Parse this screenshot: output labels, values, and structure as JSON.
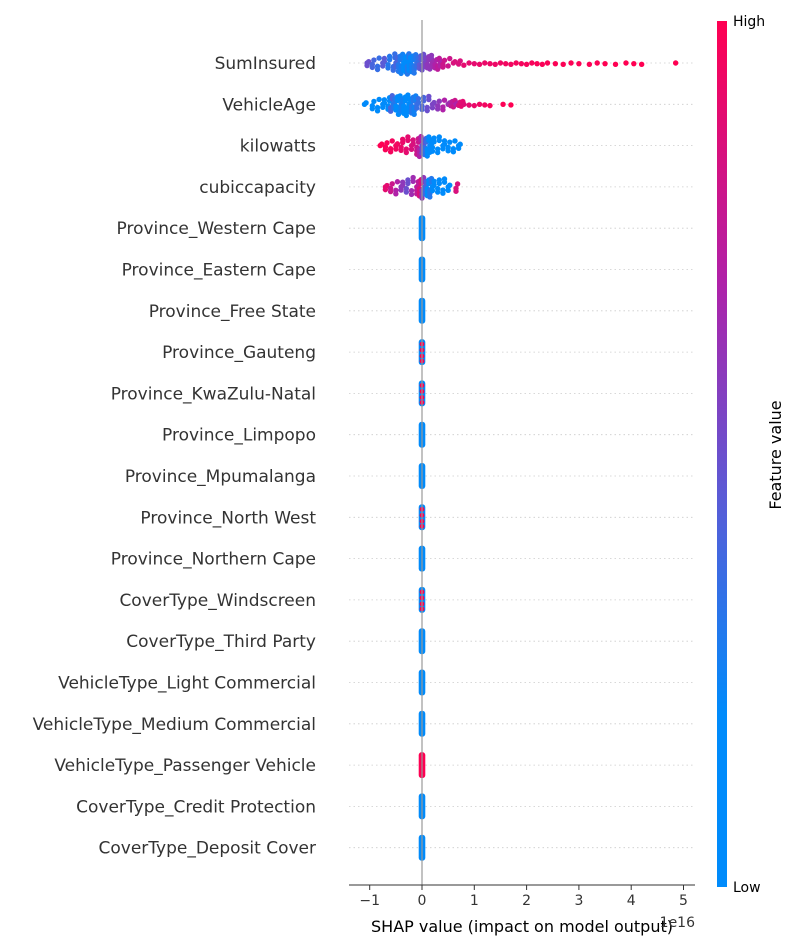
{
  "chart_data": {
    "type": "scatter",
    "subtype": "shap-beeswarm",
    "title": "",
    "xlabel": "SHAP value (impact on model output)",
    "x_offset_label": "1e16",
    "xlim": [
      -1.4,
      5.3
    ],
    "xticks": [
      {
        "value": -1,
        "label": "−1"
      },
      {
        "value": 0,
        "label": "0"
      },
      {
        "value": 1,
        "label": "1"
      },
      {
        "value": 2,
        "label": "2"
      },
      {
        "value": 3,
        "label": "3"
      },
      {
        "value": 4,
        "label": "4"
      },
      {
        "value": 5,
        "label": "5"
      }
    ],
    "colorbar": {
      "title": "Feature value",
      "high_label": "High",
      "low_label": "Low",
      "low_color": "#008bfb",
      "high_color": "#ff0052"
    },
    "grid": false,
    "features": [
      {
        "name": "SumInsured",
        "points": [
          [
            -1.05,
            0.5
          ],
          [
            -0.95,
            0.4
          ],
          [
            -0.85,
            0.35
          ],
          [
            -0.75,
            0.45
          ],
          [
            -0.65,
            0.3
          ],
          [
            -0.55,
            0.35
          ],
          [
            -0.5,
            0.4
          ],
          [
            -0.45,
            0.3
          ],
          [
            -0.4,
            0.25
          ],
          [
            -0.35,
            0.2
          ],
          [
            -0.3,
            0.15
          ],
          [
            -0.28,
            0.3
          ],
          [
            -0.25,
            0.2
          ],
          [
            -0.2,
            0.25
          ],
          [
            -0.15,
            0.3
          ],
          [
            -0.1,
            0.35
          ],
          [
            -0.05,
            0.45
          ],
          [
            0.0,
            0.5
          ],
          [
            0.05,
            0.55
          ],
          [
            0.1,
            0.6
          ],
          [
            0.15,
            0.6
          ],
          [
            0.2,
            0.65
          ],
          [
            0.25,
            0.7
          ],
          [
            0.3,
            0.75
          ],
          [
            0.35,
            0.7
          ],
          [
            0.4,
            0.8
          ],
          [
            0.5,
            0.8
          ],
          [
            0.6,
            0.85
          ],
          [
            0.7,
            0.85
          ],
          [
            0.8,
            0.9
          ],
          [
            0.9,
            0.9
          ],
          [
            1.0,
            0.9
          ],
          [
            1.1,
            0.92
          ],
          [
            1.2,
            0.92
          ],
          [
            1.3,
            0.93
          ],
          [
            1.4,
            0.93
          ],
          [
            1.5,
            0.94
          ],
          [
            1.6,
            0.95
          ],
          [
            1.7,
            0.95
          ],
          [
            1.8,
            0.96
          ],
          [
            1.9,
            0.96
          ],
          [
            2.0,
            0.97
          ],
          [
            2.1,
            0.97
          ],
          [
            2.2,
            0.98
          ],
          [
            2.3,
            0.98
          ],
          [
            2.4,
            0.98
          ],
          [
            2.55,
            0.99
          ],
          [
            2.7,
            0.99
          ],
          [
            2.85,
            0.99
          ],
          [
            3.0,
            0.99
          ],
          [
            3.2,
            0.99
          ],
          [
            3.35,
            0.99
          ],
          [
            3.5,
            1.0
          ],
          [
            3.7,
            1.0
          ],
          [
            3.9,
            1.0
          ],
          [
            4.05,
            1.0
          ],
          [
            4.2,
            1.0
          ],
          [
            4.85,
            1.0
          ]
        ]
      },
      {
        "name": "VehicleAge",
        "points": [
          [
            -1.1,
            0.1
          ],
          [
            -0.95,
            0.1
          ],
          [
            -0.85,
            0.05
          ],
          [
            -0.75,
            0.2
          ],
          [
            -0.65,
            0.1
          ],
          [
            -0.6,
            0.4
          ],
          [
            -0.55,
            0.3
          ],
          [
            -0.5,
            0.15
          ],
          [
            -0.45,
            0.2
          ],
          [
            -0.4,
            0.25
          ],
          [
            -0.35,
            0.1
          ],
          [
            -0.3,
            0.15
          ],
          [
            -0.25,
            0.2
          ],
          [
            -0.2,
            0.3
          ],
          [
            -0.15,
            0.25
          ],
          [
            -0.1,
            0.35
          ],
          [
            0.0,
            0.4
          ],
          [
            0.1,
            0.5
          ],
          [
            0.2,
            0.55
          ],
          [
            0.3,
            0.6
          ],
          [
            0.4,
            0.7
          ],
          [
            0.5,
            0.65
          ],
          [
            0.55,
            0.75
          ],
          [
            0.6,
            0.8
          ],
          [
            0.65,
            0.7
          ],
          [
            0.7,
            0.85
          ],
          [
            0.75,
            0.9
          ],
          [
            0.8,
            0.88
          ],
          [
            0.9,
            0.9
          ],
          [
            1.0,
            0.92
          ],
          [
            1.1,
            0.94
          ],
          [
            1.2,
            0.95
          ],
          [
            1.3,
            0.97
          ],
          [
            1.55,
            0.99
          ],
          [
            1.7,
            1.0
          ]
        ]
      },
      {
        "name": "kilowatts",
        "points": [
          [
            -0.8,
            1.0
          ],
          [
            -0.7,
            0.98
          ],
          [
            -0.6,
            0.96
          ],
          [
            -0.5,
            0.95
          ],
          [
            -0.4,
            0.92
          ],
          [
            -0.3,
            0.9
          ],
          [
            -0.2,
            0.85
          ],
          [
            -0.1,
            0.8
          ],
          [
            -0.05,
            0.7
          ],
          [
            0.0,
            0.5
          ],
          [
            0.05,
            0.35
          ],
          [
            0.1,
            0.2
          ],
          [
            0.15,
            0.15
          ],
          [
            0.2,
            0.12
          ],
          [
            0.3,
            0.1
          ],
          [
            0.4,
            0.08
          ],
          [
            0.5,
            0.05
          ],
          [
            0.6,
            0.05
          ],
          [
            0.7,
            0.02
          ]
        ]
      },
      {
        "name": "cubiccapacity",
        "points": [
          [
            -0.7,
            0.9
          ],
          [
            -0.6,
            0.8
          ],
          [
            -0.5,
            0.7
          ],
          [
            -0.4,
            0.6
          ],
          [
            -0.3,
            0.5
          ],
          [
            -0.2,
            0.65
          ],
          [
            -0.1,
            0.75
          ],
          [
            -0.05,
            0.85
          ],
          [
            0.0,
            0.6
          ],
          [
            0.05,
            0.4
          ],
          [
            0.1,
            0.2
          ],
          [
            0.15,
            0.3
          ],
          [
            0.2,
            0.1
          ],
          [
            0.3,
            0.15
          ],
          [
            0.4,
            0.1
          ],
          [
            0.5,
            0.2
          ],
          [
            0.65,
            0.85
          ]
        ]
      },
      {
        "name": "Province_Western Cape",
        "points": [
          [
            0.0,
            0.0
          ]
        ]
      },
      {
        "name": "Province_Eastern Cape",
        "points": [
          [
            0.0,
            0.0
          ]
        ]
      },
      {
        "name": "Province_Free State",
        "points": [
          [
            0.0,
            0.0
          ]
        ]
      },
      {
        "name": "Province_Gauteng",
        "points": [
          [
            0.0,
            0.0
          ],
          [
            0.0,
            1.0
          ]
        ]
      },
      {
        "name": "Province_KwaZulu-Natal",
        "points": [
          [
            0.0,
            0.0
          ],
          [
            0.0,
            1.0
          ]
        ]
      },
      {
        "name": "Province_Limpopo",
        "points": [
          [
            0.0,
            0.0
          ]
        ]
      },
      {
        "name": "Province_Mpumalanga",
        "points": [
          [
            0.0,
            0.0
          ]
        ]
      },
      {
        "name": "Province_North West",
        "points": [
          [
            0.0,
            0.0
          ],
          [
            0.0,
            1.0
          ]
        ]
      },
      {
        "name": "Province_Northern Cape",
        "points": [
          [
            0.0,
            0.0
          ]
        ]
      },
      {
        "name": "CoverType_Windscreen",
        "points": [
          [
            0.0,
            0.0
          ],
          [
            0.0,
            1.0
          ]
        ]
      },
      {
        "name": "CoverType_Third Party",
        "points": [
          [
            0.0,
            0.0
          ]
        ]
      },
      {
        "name": "VehicleType_Light Commercial",
        "points": [
          [
            0.0,
            0.0
          ]
        ]
      },
      {
        "name": "VehicleType_Medium Commercial",
        "points": [
          [
            0.0,
            0.0
          ]
        ]
      },
      {
        "name": "VehicleType_Passenger Vehicle",
        "points": [
          [
            0.0,
            1.0
          ]
        ]
      },
      {
        "name": "CoverType_Credit Protection",
        "points": [
          [
            0.0,
            0.0
          ]
        ]
      },
      {
        "name": "CoverType_Deposit Cover",
        "points": [
          [
            0.0,
            0.0
          ]
        ]
      }
    ]
  }
}
